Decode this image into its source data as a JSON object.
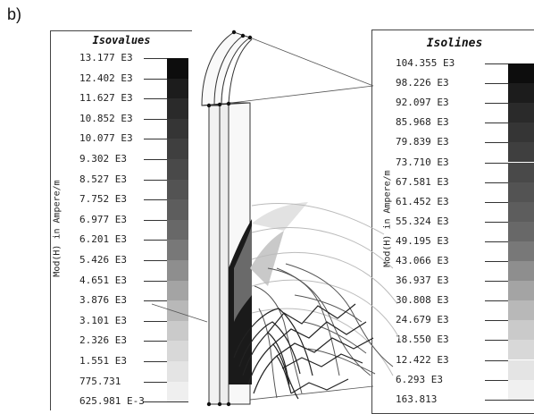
{
  "panel_label": "b)",
  "left_legend": {
    "title": "Isovalues",
    "axis_label": "Mod(H) in Ampere/m",
    "values": [
      "13.177 E3",
      "12.402 E3",
      "11.627 E3",
      "10.852 E3",
      "10.077 E3",
      "9.302 E3",
      "8.527 E3",
      "7.752 E3",
      "6.977 E3",
      "6.201 E3",
      "5.426 E3",
      "4.651 E3",
      "3.876 E3",
      "3.101 E3",
      "2.326 E3",
      "1.551 E3",
      "775.731",
      "625.981 E-3"
    ],
    "colors": [
      "#0d0d0d",
      "#1c1c1c",
      "#2a2a2a",
      "#353535",
      "#3f3f3f",
      "#494949",
      "#535353",
      "#5d5d5d",
      "#686868",
      "#787878",
      "#8e8e8e",
      "#a4a4a4",
      "#b8b8b8",
      "#cacaca",
      "#d8d8d8",
      "#e4e4e4",
      "#efefef"
    ]
  },
  "right_legend": {
    "title": "Isolines",
    "axis_label": "Mod(H) in Ampere/m",
    "values": [
      "104.355 E3",
      "98.226 E3",
      "92.097 E3",
      "85.968 E3",
      "79.839 E3",
      "73.710 E3",
      "67.581 E3",
      "61.452 E3",
      "55.324 E3",
      "49.195 E3",
      "43.066 E3",
      "36.937 E3",
      "30.808 E3",
      "24.679 E3",
      "18.550 E3",
      "12.422 E3",
      "6.293 E3",
      "163.813"
    ],
    "colors": [
      "#0d0d0d",
      "#1c1c1c",
      "#2a2a2a",
      "#353535",
      "#3f3f3f",
      "#494949",
      "#535353",
      "#5d5d5d",
      "#686868",
      "#787878",
      "#8e8e8e",
      "#a4a4a4",
      "#b8b8b8",
      "#cacaca",
      "#d8d8d8",
      "#e4e4e4",
      "#f0f0f0"
    ]
  }
}
